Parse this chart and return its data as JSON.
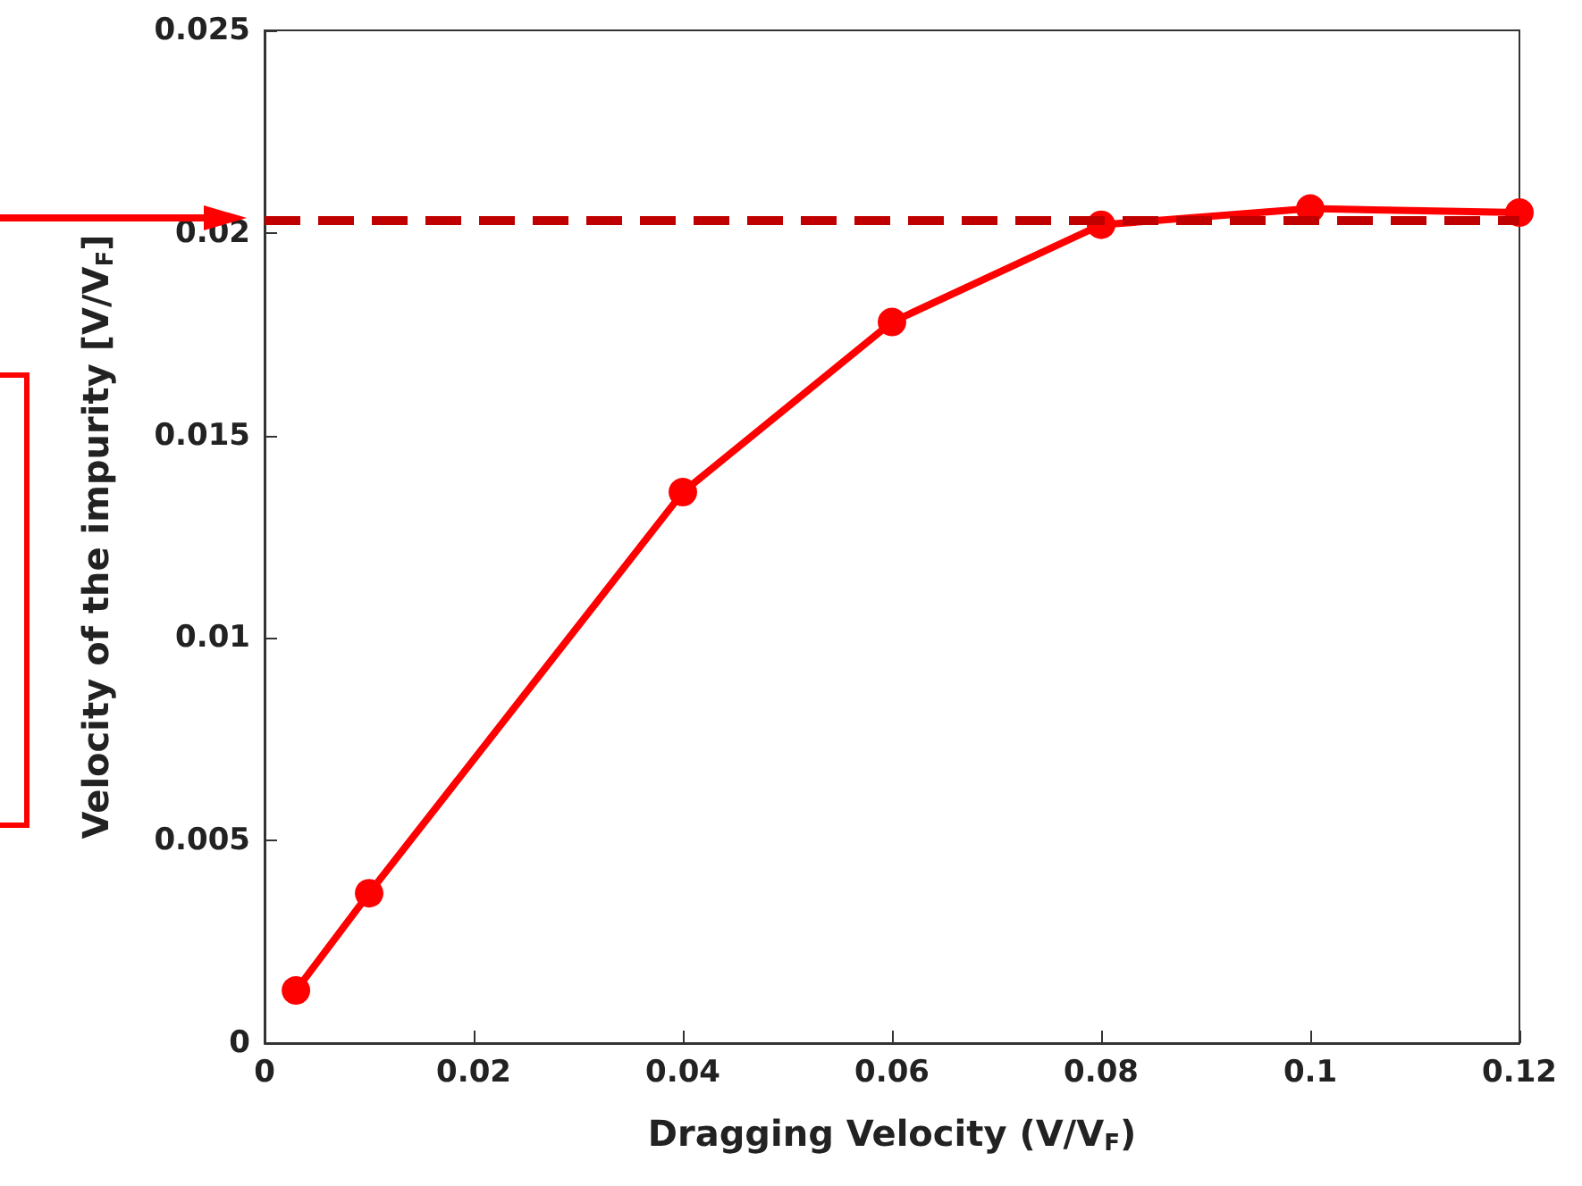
{
  "chart_data": {
    "type": "line",
    "xlabel": "Dragging Velocity (V/V$_{F}$)",
    "ylabel": "Velocity of the impurity [V/V$_{F}$]",
    "x": [
      0.003,
      0.01,
      0.04,
      0.06,
      0.08,
      0.1,
      0.12
    ],
    "series": [
      {
        "color": "#ff0000",
        "values": [
          0.0013,
          0.0037,
          0.0136,
          0.0178,
          0.0202,
          0.0206,
          0.0205
        ]
      }
    ],
    "xlim": [
      0,
      0.12
    ],
    "xticks": [
      0,
      0.02,
      0.04,
      0.06,
      0.08,
      0.1,
      0.12
    ],
    "ylim": [
      0,
      0.025
    ],
    "yticks": [
      0,
      0.005,
      0.01,
      0.015,
      0.02,
      0.025
    ],
    "ref_lines": [
      {
        "axis": "y",
        "value": 0.0203,
        "color": "#c00000",
        "line_style": "dashed"
      }
    ],
    "marker": "circle",
    "line_style": "solid"
  }
}
